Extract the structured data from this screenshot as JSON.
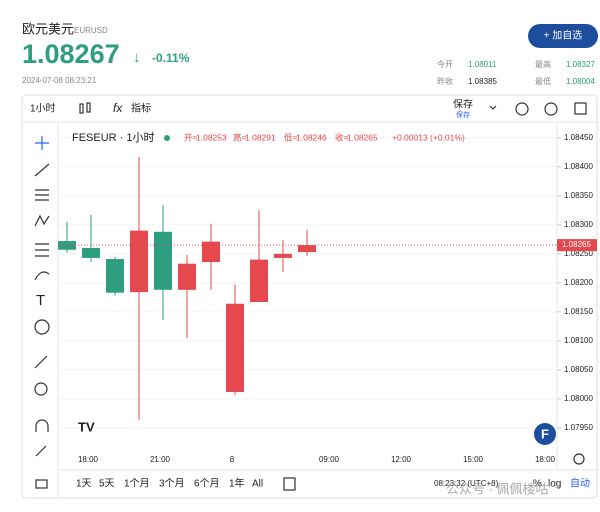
{
  "header": {
    "name": "欧元美元",
    "code": "EURUSD",
    "price": "1.08267",
    "arrow": "↓",
    "change": "-0.11%",
    "timestamp": "2024-07-08 08:23:21",
    "button": "+ 加自选"
  },
  "stats": [
    {
      "label": "今开",
      "value": "1.08011"
    },
    {
      "label": "最高",
      "value": "1.08327"
    },
    {
      "label": "昨收",
      "value": "1.08385"
    },
    {
      "label": "最低",
      "value": "1.08004"
    }
  ],
  "toolbar": {
    "interval": "1小时",
    "indicators": "指标",
    "save": "保存",
    "save_sub": "保存"
  },
  "legend": {
    "symbol": "FESEUR · 1小时",
    "open_label": "开=",
    "high_label": "高=",
    "low_label": "低=",
    "close_label": "收=",
    "change": "+0.00013 (+0.01%)"
  },
  "chart_data": {
    "type": "candlestick",
    "categories": [
      null,
      null,
      null,
      null,
      null,
      null,
      null,
      null,
      null,
      null,
      null
    ],
    "series": [
      {
        "up_color": "#e5484d",
        "down_color": "#2e9e80",
        "open": [
          1.08272,
          1.0826,
          1.08241,
          1.08184,
          1.08288,
          1.08188,
          1.08236,
          1.08012,
          1.08167,
          1.08243,
          1.08253
        ],
        "high": [
          1.08305,
          1.08317,
          1.08245,
          1.08417,
          1.08334,
          1.08248,
          1.08302,
          1.08197,
          1.08326,
          1.08274,
          1.08291
        ],
        "low": [
          1.08252,
          1.08236,
          1.08178,
          1.07964,
          1.08136,
          1.08105,
          1.08188,
          1.08007,
          1.08167,
          1.08219,
          1.08246
        ],
        "close": [
          1.08257,
          1.08243,
          1.08183,
          1.0829,
          1.08188,
          1.08233,
          1.08271,
          1.08164,
          1.0824,
          1.0825,
          1.08265
        ]
      }
    ],
    "ylim": [
      1.07912,
      1.08472
    ],
    "yticks": [
      {
        "value": 1.0845,
        "label": "1.08450"
      },
      {
        "value": 1.084,
        "label": "1.08400"
      },
      {
        "value": 1.0835,
        "label": "1.08350"
      },
      {
        "value": 1.083,
        "label": "1.08300"
      },
      {
        "value": 1.0825,
        "label": "1.08250"
      },
      {
        "value": 1.082,
        "label": "1.08200"
      },
      {
        "value": 1.0815,
        "label": "1.08150"
      },
      {
        "value": 1.081,
        "label": "1.08100"
      },
      {
        "value": 1.0805,
        "label": "1.08050"
      },
      {
        "value": 1.08,
        "label": "1.08000"
      },
      {
        "value": 1.0795,
        "label": "1.07950"
      }
    ],
    "last_price": 1.08265,
    "x_labels": [
      "18:00",
      "21:00",
      "8",
      "09:00",
      "12:00",
      "15:00",
      "18:00"
    ],
    "grid": true
  },
  "range_buttons": [
    "1天",
    "5天",
    "1个月",
    "3个月",
    "6个月",
    "1年",
    "All"
  ],
  "bottom": {
    "time": "08:23:32 (UTC+8)",
    "percent": "%",
    "log": "log",
    "auto": "自动"
  },
  "watermark": "公众号 · 佩佩楼咕"
}
